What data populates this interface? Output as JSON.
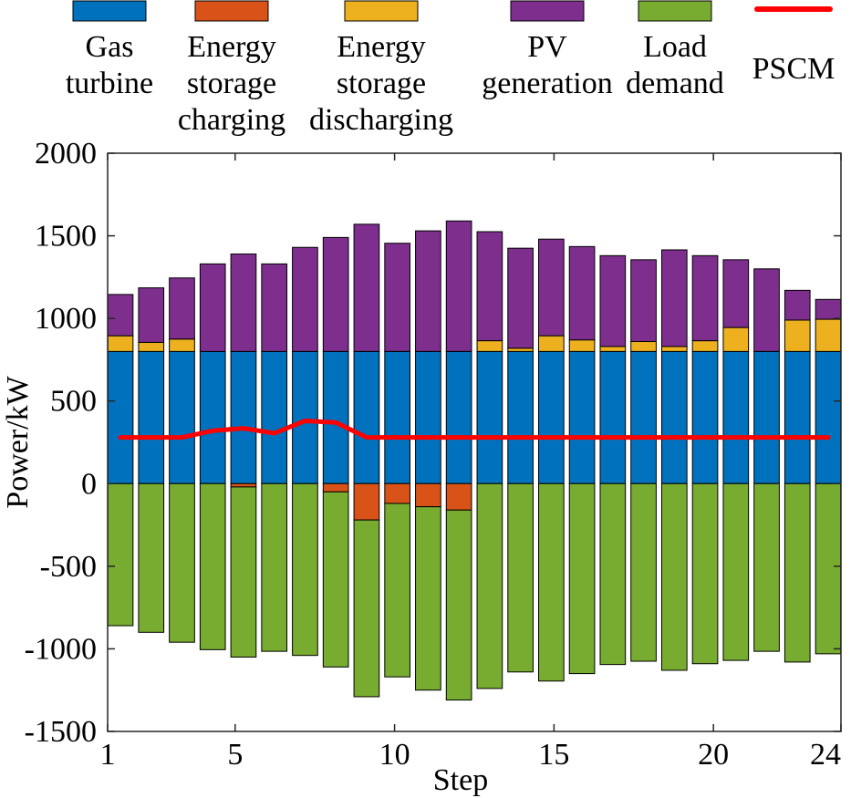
{
  "chart_data": {
    "type": "bar",
    "stacked": true,
    "xlabel": "Step",
    "ylabel": "Power/kW",
    "ylim": [
      -1500,
      2000
    ],
    "yticks": [
      -1500,
      -1000,
      -500,
      0,
      500,
      1000,
      1500,
      2000
    ],
    "xlim": [
      1,
      24
    ],
    "xticks": [
      1,
      5,
      10,
      15,
      20,
      24
    ],
    "categories": [
      1,
      2,
      3,
      4,
      5,
      6,
      7,
      8,
      9,
      10,
      11,
      12,
      13,
      14,
      15,
      16,
      17,
      18,
      19,
      20,
      21,
      22,
      23,
      24
    ],
    "series": [
      {
        "name": "Gas turbine",
        "legend_lines": [
          "Gas",
          "turbine"
        ],
        "color": "#0072BD",
        "values": [
          800,
          800,
          800,
          800,
          800,
          800,
          800,
          800,
          800,
          800,
          800,
          800,
          800,
          800,
          800,
          800,
          800,
          800,
          800,
          800,
          800,
          800,
          800,
          800
        ]
      },
      {
        "name": "Energy storage charging",
        "legend_lines": [
          "Energy",
          "storage",
          "charging"
        ],
        "color": "#D95319",
        "values": [
          0,
          0,
          0,
          0,
          -20,
          0,
          0,
          -50,
          -220,
          -120,
          -140,
          -160,
          0,
          0,
          0,
          0,
          0,
          0,
          0,
          0,
          0,
          0,
          0,
          0
        ]
      },
      {
        "name": "Energy storage discharging",
        "legend_lines": [
          "Energy",
          "storage",
          "discharging"
        ],
        "color": "#EDB120",
        "values": [
          95,
          55,
          75,
          0,
          0,
          0,
          0,
          0,
          0,
          0,
          0,
          0,
          65,
          20,
          95,
          70,
          30,
          60,
          30,
          65,
          145,
          0,
          190,
          195
        ]
      },
      {
        "name": "PV generation",
        "legend_lines": [
          "PV",
          "generation"
        ],
        "color": "#7E2F8E",
        "values": [
          250,
          330,
          370,
          530,
          590,
          530,
          630,
          690,
          770,
          655,
          730,
          790,
          660,
          605,
          585,
          565,
          550,
          495,
          585,
          515,
          410,
          500,
          180,
          120
        ]
      },
      {
        "name": "Load demand",
        "legend_lines": [
          "Load",
          "demand"
        ],
        "color": "#77AC30",
        "values": [
          -860,
          -900,
          -960,
          -1005,
          -1030,
          -1015,
          -1040,
          -1060,
          -1070,
          -1050,
          -1110,
          -1150,
          -1240,
          -1140,
          -1195,
          -1150,
          -1095,
          -1075,
          -1130,
          -1090,
          -1070,
          -1015,
          -1080,
          -1030
        ]
      },
      {
        "name": "PSCM",
        "legend_lines": [
          "PSCM"
        ],
        "color": "#FF0000",
        "type": "line",
        "values": [
          280,
          280,
          280,
          320,
          335,
          305,
          380,
          370,
          280,
          280,
          280,
          280,
          280,
          280,
          280,
          280,
          280,
          280,
          280,
          280,
          280,
          280,
          280,
          280
        ]
      }
    ]
  }
}
